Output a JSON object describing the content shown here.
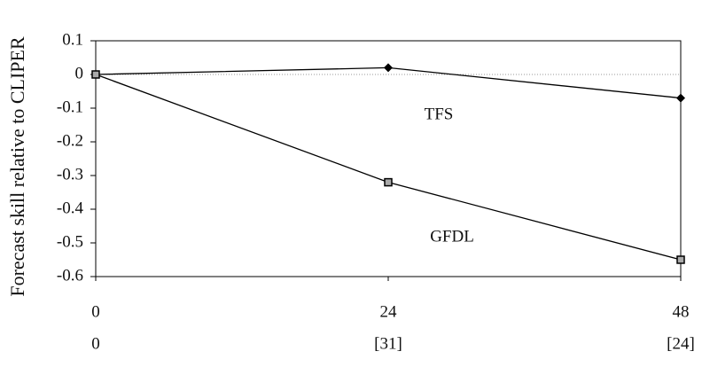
{
  "chart_data": {
    "type": "line",
    "y_label": "Forecast skill relative to CLIPER",
    "x": [
      0,
      24,
      48
    ],
    "x_sublabels": [
      "0",
      "[31]",
      "[24]"
    ],
    "series": [
      {
        "name": "TFS",
        "color": "#000000",
        "marker": "diamond",
        "values": [
          0,
          0.02,
          -0.07
        ]
      },
      {
        "name": "GFDL",
        "color": "#000000",
        "marker": "square",
        "values": [
          0,
          -0.32,
          -0.55
        ]
      }
    ],
    "xlim": [
      0,
      48
    ],
    "xticks": [
      0,
      24,
      48
    ],
    "ylim": [
      -0.6,
      0.1
    ],
    "yticks": [
      0.1,
      0,
      -0.1,
      -0.2,
      -0.3,
      -0.4,
      -0.5,
      -0.6
    ],
    "zero_line": true
  }
}
